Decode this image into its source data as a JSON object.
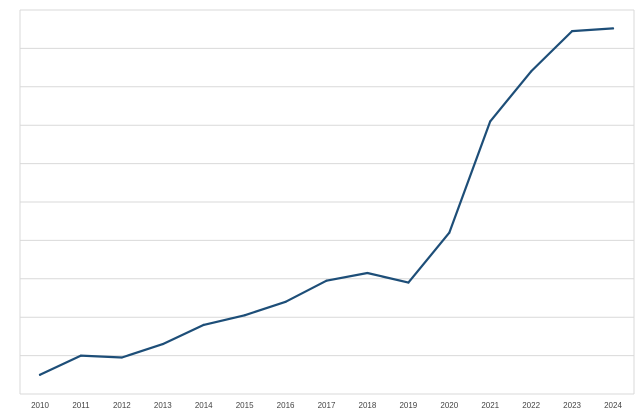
{
  "chart_data": {
    "type": "line",
    "title": "",
    "xlabel": "",
    "ylabel": "",
    "x": [
      "2010",
      "2011",
      "2012",
      "2013",
      "2014",
      "2015",
      "2016",
      "2017",
      "2018",
      "2019",
      "2020",
      "2021",
      "2022",
      "2023",
      "2024"
    ],
    "series": [
      {
        "values": [
          0.5,
          1.0,
          0.95,
          1.3,
          1.8,
          2.05,
          2.4,
          2.95,
          3.15,
          2.9,
          4.2,
          7.1,
          8.4,
          9.45,
          9.52
        ]
      }
    ],
    "ylim": [
      0,
      10
    ],
    "grid": true,
    "legend": "none",
    "line_color": "#1d4e78",
    "grid_color": "#d9d9d9"
  }
}
